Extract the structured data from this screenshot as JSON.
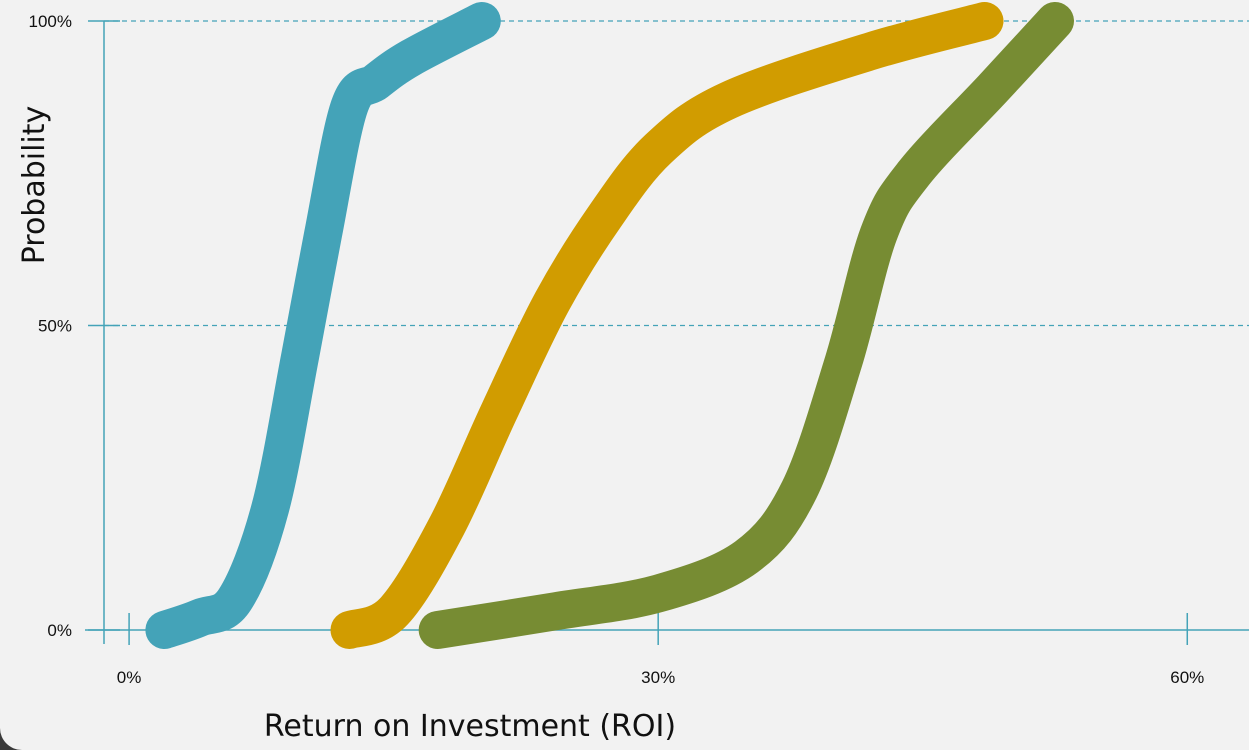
{
  "chart_data": {
    "type": "line",
    "title": "",
    "xlabel": "Return on Investment (ROI)",
    "ylabel": "Probability",
    "x_ticks": [
      {
        "value": 0,
        "label": "0%"
      },
      {
        "value": 30,
        "label": "30%"
      },
      {
        "value": 60,
        "label": "60%"
      }
    ],
    "y_ticks": [
      {
        "value": 0,
        "label": "0%"
      },
      {
        "value": 50,
        "label": "50%"
      },
      {
        "value": 100,
        "label": "100%"
      }
    ],
    "xlim": [
      -2.5,
      63.5
    ],
    "ylim": [
      0,
      100
    ],
    "grid": {
      "y_dashed": [
        50,
        100
      ]
    },
    "legend": "none",
    "series": [
      {
        "color": "#44a3b8",
        "x": [
          2,
          4,
          6,
          8,
          9.7,
          11,
          12.5,
          14,
          16,
          20
        ],
        "y": [
          0,
          2,
          5,
          20,
          45,
          65,
          86,
          90,
          94,
          100
        ]
      },
      {
        "color": "#d19c00",
        "x": [
          12.5,
          15,
          18,
          21,
          24,
          27,
          30,
          34,
          42,
          48.5
        ],
        "y": [
          0,
          3,
          17,
          36,
          54,
          68,
          79,
          87,
          95,
          100
        ]
      },
      {
        "color": "#778c33",
        "x": [
          17.5,
          24,
          30,
          35,
          38,
          40.5,
          42.5,
          44.5,
          49,
          52.5
        ],
        "y": [
          0,
          3,
          6,
          12,
          23,
          44,
          65,
          75,
          89,
          100
        ]
      }
    ]
  }
}
